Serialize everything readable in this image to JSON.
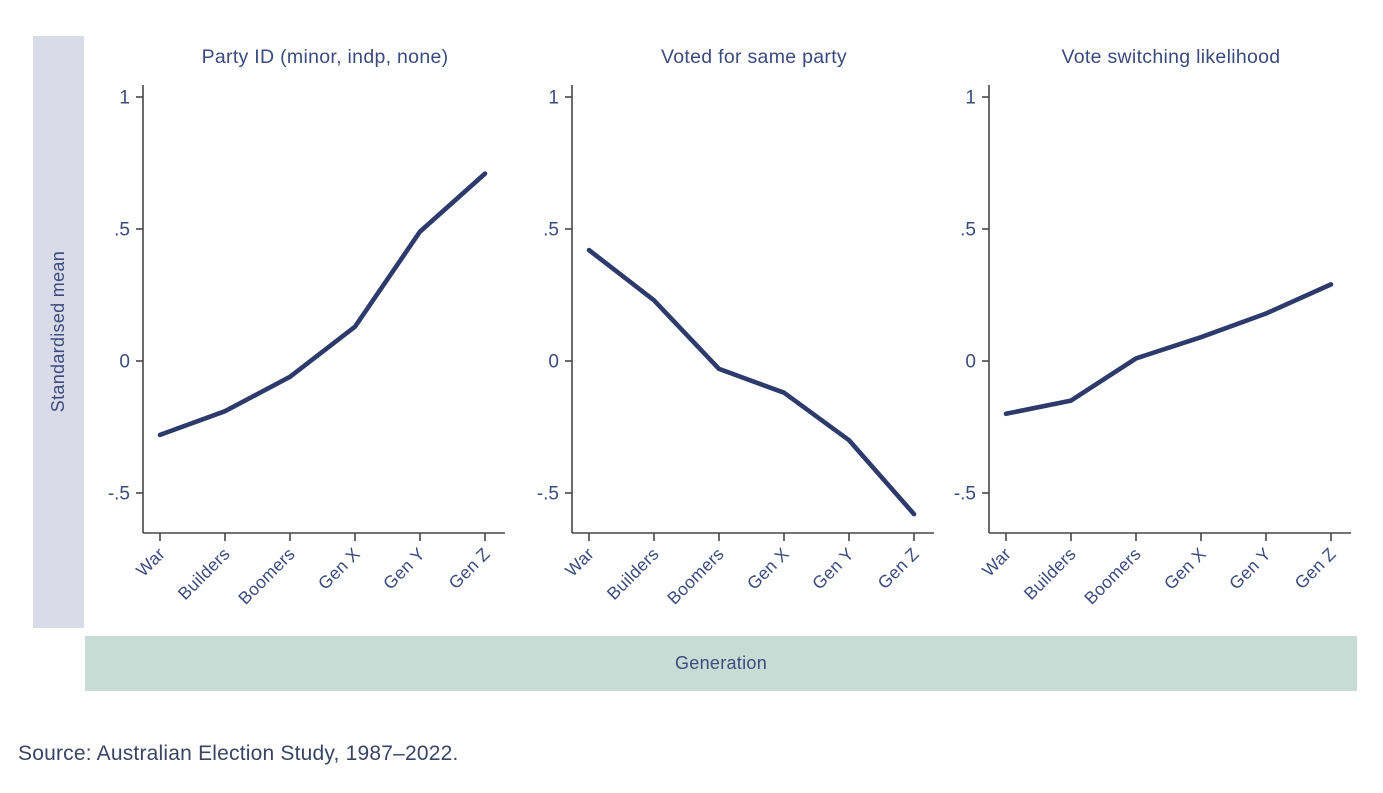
{
  "figure": {
    "y_axis_band_label": "Standardised mean",
    "x_axis_band_label": "Generation",
    "source_note": "Source: Australian Election Study, 1987–2022.",
    "colors": {
      "line": "#2e3a6b",
      "label_text": "#3c4b7d",
      "axis": "#474747",
      "y_band_bg": "#d9dce8",
      "x_band_bg": "#c8dcd6",
      "source_text": "#3a4464",
      "background": "#ffffff"
    }
  },
  "chart_data": {
    "type": "line",
    "categories": [
      "War",
      "Builders",
      "Boomers",
      "Gen X",
      "Gen Y",
      "Gen Z"
    ],
    "xlabel": "Generation",
    "ylabel": "Standardised mean",
    "ylim": [
      -0.65,
      1.04
    ],
    "yticks": [
      1,
      0.5,
      0,
      -0.5
    ],
    "ytick_labels": [
      "1",
      ".5",
      "0",
      "-.5"
    ],
    "grid": false,
    "legend_position": "none",
    "panels": [
      {
        "title": "Party ID (minor, indp, none)",
        "values": [
          -0.28,
          -0.19,
          -0.06,
          0.13,
          0.49,
          0.71
        ]
      },
      {
        "title": "Voted for same party",
        "values": [
          0.42,
          0.23,
          -0.03,
          -0.12,
          -0.3,
          -0.58
        ]
      },
      {
        "title": "Vote switching likelihood",
        "values": [
          -0.2,
          -0.15,
          0.01,
          0.09,
          0.18,
          0.29
        ]
      }
    ],
    "source": "Source: Australian Election Study, 1987–2022."
  }
}
